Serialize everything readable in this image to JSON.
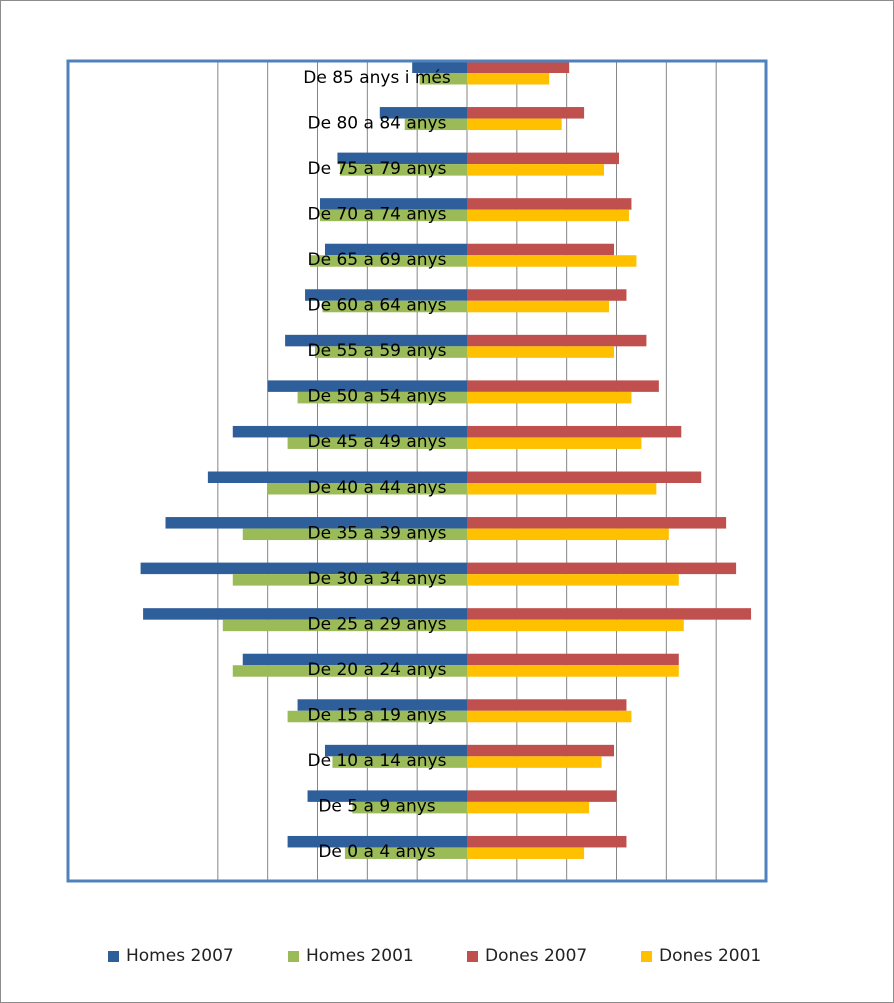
{
  "chart_data": {
    "type": "bar",
    "orientation": "horizontal",
    "categories": [
      "De 0 a 4 anys",
      "De 5 a 9 anys",
      "De 10 a 14 anys",
      "De 15 a 19 anys",
      "De 20 a 24 anys",
      "De 25 a 29 anys",
      "De 30 a 34 anys",
      "De 35 a 39 anys",
      "De 40 a 44 anys",
      "De 45 a 49 anys",
      "De 50 a 54 anys",
      "De 55 a 59 anys",
      "De 60 a 64 anys",
      "De 65 a 69 anys",
      "De 70 a 74 anys",
      "De 75 a 79 anys",
      "De 80 a 84 anys",
      "De 85 anys i més"
    ],
    "series": [
      {
        "name": "Homes 2007",
        "color": "#2F5F9A",
        "side": "left",
        "values": [
          3.6,
          3.2,
          2.85,
          3.4,
          4.5,
          6.5,
          6.55,
          6.05,
          5.2,
          4.7,
          4.0,
          3.65,
          3.25,
          2.85,
          2.95,
          2.6,
          1.75,
          1.1
        ]
      },
      {
        "name": "Homes 2001",
        "color": "#9BBB59",
        "side": "left",
        "values": [
          2.45,
          2.3,
          2.7,
          3.6,
          4.7,
          4.9,
          4.7,
          4.5,
          4.0,
          3.6,
          3.4,
          3.05,
          2.9,
          3.15,
          2.95,
          2.55,
          1.25,
          0.95
        ]
      },
      {
        "name": "Dones 2007",
        "color": "#C0504D",
        "side": "right",
        "values": [
          3.2,
          3.0,
          2.95,
          3.2,
          4.25,
          5.7,
          5.4,
          5.2,
          4.7,
          4.3,
          3.85,
          3.6,
          3.2,
          2.95,
          3.3,
          3.05,
          2.35,
          2.05
        ]
      },
      {
        "name": "Dones 2001",
        "color": "#FFC000",
        "side": "right",
        "values": [
          2.35,
          2.45,
          2.7,
          3.3,
          4.25,
          4.35,
          4.25,
          4.05,
          3.8,
          3.5,
          3.3,
          2.95,
          2.85,
          3.4,
          3.25,
          2.75,
          1.9,
          1.65
        ]
      }
    ],
    "xlim": [
      -6,
      6
    ],
    "grid": true,
    "legend": "bottom"
  }
}
